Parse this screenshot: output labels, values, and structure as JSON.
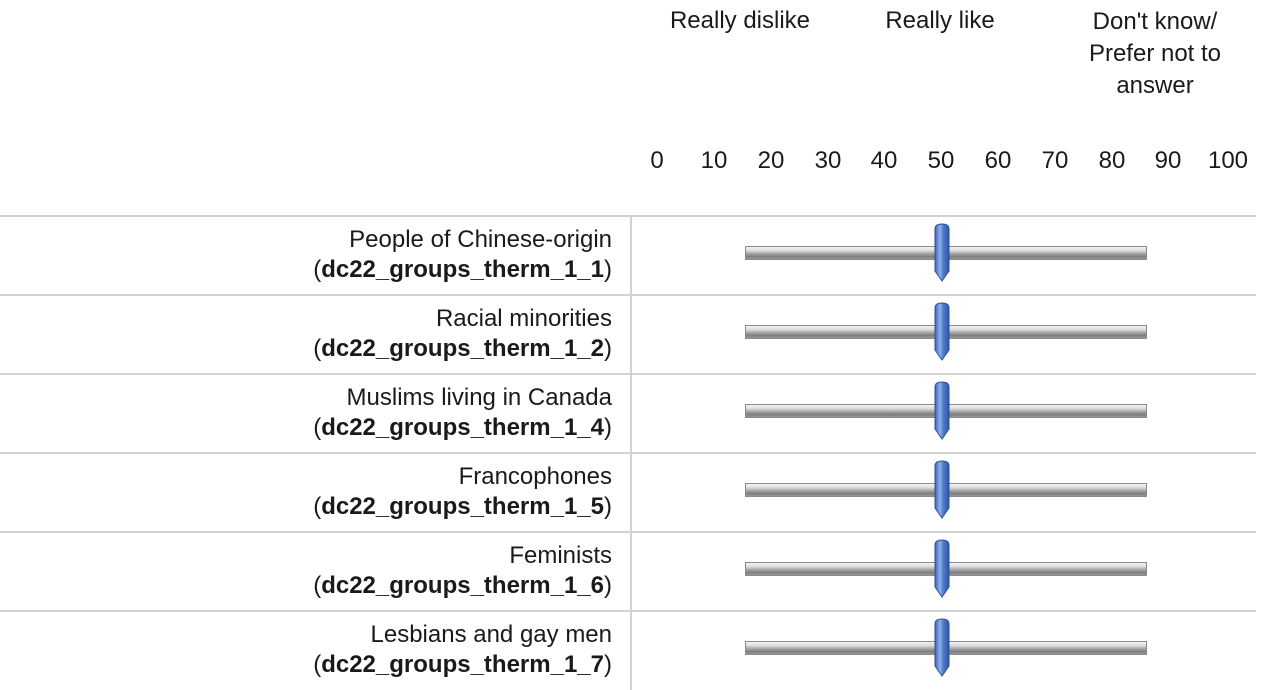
{
  "header": {
    "left_anchor": "Really dislike",
    "right_anchor": "Really like",
    "dont_know_lines": [
      "Don't know/",
      "Prefer not to",
      "answer"
    ]
  },
  "scale": {
    "ticks": [
      "0",
      "10",
      "20",
      "30",
      "40",
      "50",
      "60",
      "70",
      "80",
      "90",
      "100"
    ]
  },
  "colors": {
    "handle": "#4f79c9",
    "track": "#a6a6a6",
    "divider": "#d2d2d2"
  },
  "rows": [
    {
      "label": "People of Chinese-origin",
      "var": "dc22_groups_therm_1_1",
      "value": 50
    },
    {
      "label": "Racial minorities",
      "var": "dc22_groups_therm_1_2",
      "value": 50
    },
    {
      "label": "Muslims living in Canada",
      "var": "dc22_groups_therm_1_4",
      "value": 50
    },
    {
      "label": "Francophones",
      "var": "dc22_groups_therm_1_5",
      "value": 50
    },
    {
      "label": "Feminists",
      "var": "dc22_groups_therm_1_6",
      "value": 50
    },
    {
      "label": "Lesbians and gay men",
      "var": "dc22_groups_therm_1_7",
      "value": 50
    }
  ]
}
